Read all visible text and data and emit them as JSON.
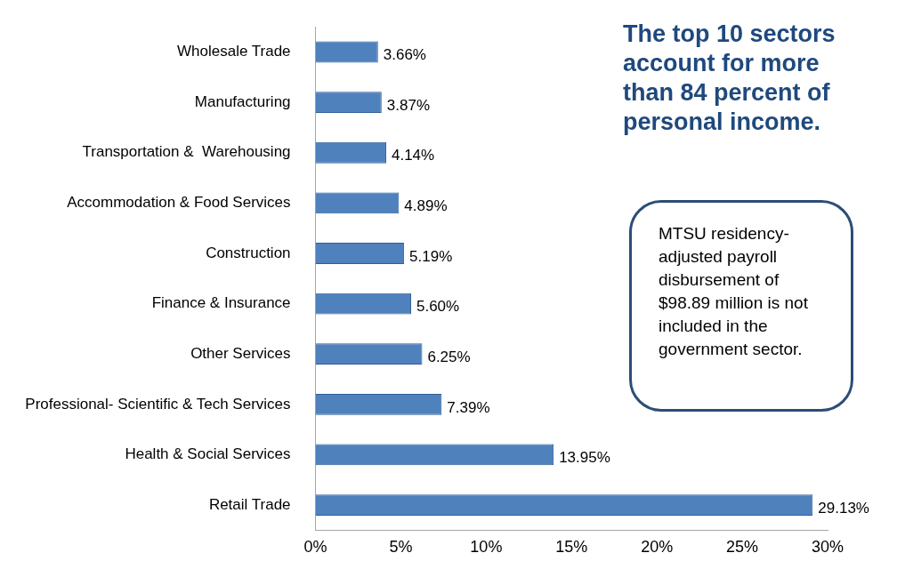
{
  "chart_data": {
    "type": "bar",
    "orientation": "horizontal",
    "categories": [
      "Wholesale Trade",
      "Manufacturing",
      "Transportation &  Warehousing",
      "Accommodation & Food Services",
      "Construction",
      "Finance & Insurance",
      "Other Services",
      "Professional- Scientific & Tech Services",
      "Health & Social Services",
      "Retail Trade"
    ],
    "values": [
      3.66,
      3.87,
      4.14,
      4.89,
      5.19,
      5.6,
      6.25,
      7.39,
      13.95,
      29.13
    ],
    "value_labels": [
      "3.66%",
      "3.87%",
      "4.14%",
      "4.89%",
      "5.19%",
      "5.60%",
      "6.25%",
      "7.39%",
      "13.95%",
      "29.13%"
    ],
    "color": "#4f81bd",
    "xlim": [
      0,
      30
    ],
    "xticks": [
      {
        "value": 0,
        "label": "0%"
      },
      {
        "value": 5,
        "label": "5%"
      },
      {
        "value": 10,
        "label": "10%"
      },
      {
        "value": 15,
        "label": "15%"
      },
      {
        "value": 20,
        "label": "20%"
      },
      {
        "value": 25,
        "label": "25%"
      },
      {
        "value": 30,
        "label": "30%"
      }
    ],
    "grid": false,
    "legend": false,
    "annotations": [
      "The top 10 sectors account for more than 84 percent of personal income.",
      "MTSU residency-adjusted payroll disbursement of $98.89 million is not included in the government sector."
    ]
  }
}
